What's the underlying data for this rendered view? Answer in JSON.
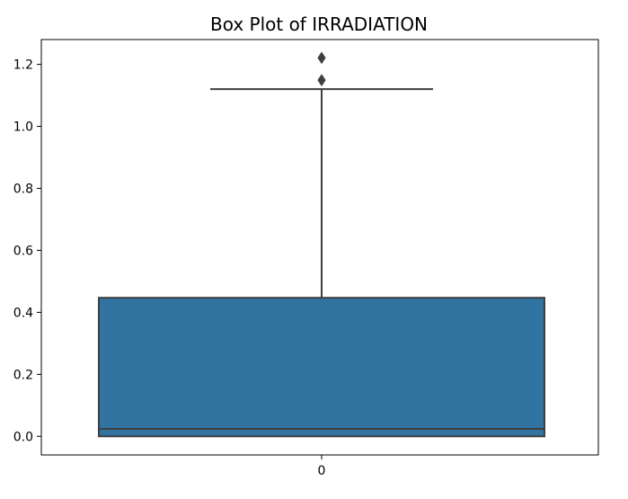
{
  "chart_data": {
    "type": "box",
    "title": "Box Plot of IRRADIATION",
    "xlabel": "",
    "ylabel": "",
    "categories": [
      "0"
    ],
    "ylim": [
      -0.06,
      1.28
    ],
    "yticks": [
      0.0,
      0.2,
      0.4,
      0.6,
      0.8,
      1.0,
      1.2
    ],
    "ytick_labels": [
      "0.0",
      "0.2",
      "0.4",
      "0.6",
      "0.8",
      "1.0",
      "1.2"
    ],
    "grid": false,
    "box": {
      "category": "0",
      "min": 0.0,
      "q1": 0.0,
      "median": 0.024,
      "q3": 0.447,
      "whisker_low": 0.0,
      "whisker_high": 1.12,
      "outliers": [
        1.149,
        1.221
      ],
      "color": "#3274a1",
      "edge_color": "#3f3f3f"
    }
  }
}
